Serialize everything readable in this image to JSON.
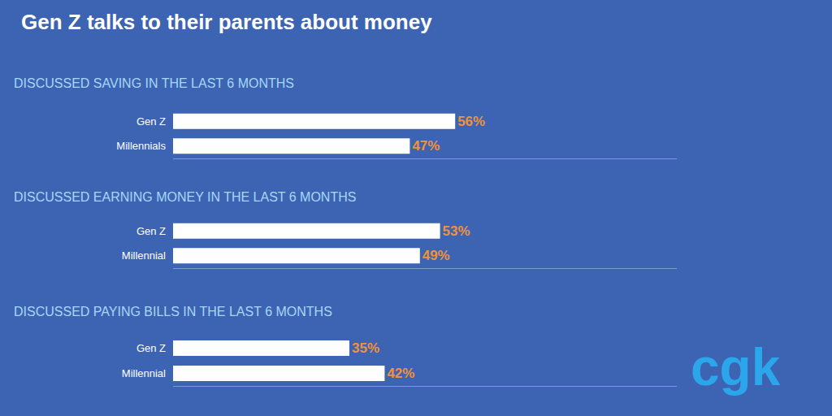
{
  "title": "Gen Z talks to their parents about money",
  "logo": "cgk",
  "chart_data": [
    {
      "type": "bar",
      "orientation": "horizontal",
      "title": "DISCUSSED SAVING IN THE LAST 6 MONTHS",
      "categories": [
        "Gen Z",
        "Millennials"
      ],
      "values": [
        56,
        47
      ],
      "value_labels": [
        "56%",
        "47%"
      ],
      "color": "#ffffff",
      "data_labels": true,
      "xlim": [
        0,
        100
      ],
      "xticks": [],
      "tick_labels": "y",
      "grid": false
    },
    {
      "type": "bar",
      "orientation": "horizontal",
      "title": "DISCUSSED EARNING MONEY IN THE LAST 6 MONTHS",
      "categories": [
        "Gen Z",
        "Millennial"
      ],
      "values": [
        53,
        49
      ],
      "value_labels": [
        "53%",
        "49%"
      ],
      "color": "#ffffff",
      "data_labels": true,
      "xlim": [
        0,
        100
      ],
      "xticks": [],
      "tick_labels": "y",
      "grid": false
    },
    {
      "type": "bar",
      "orientation": "horizontal",
      "title": "DISCUSSED PAYING BILLS IN THE LAST 6 MONTHS",
      "categories": [
        "Gen Z",
        "Millennial"
      ],
      "values": [
        35,
        42
      ],
      "value_labels": [
        "35%",
        "42%"
      ],
      "color": "#ffffff",
      "data_labels": true,
      "xlim": [
        0,
        100
      ],
      "xticks": [],
      "tick_labels": "y",
      "grid": false
    }
  ]
}
